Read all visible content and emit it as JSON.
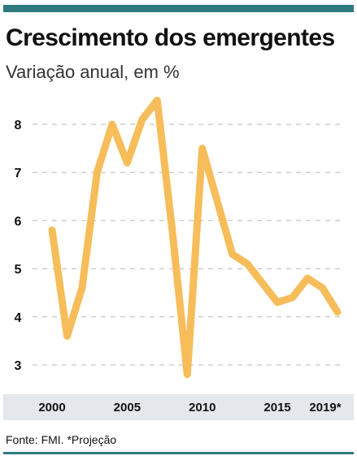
{
  "header": {
    "title": "Crescimento dos emergentes",
    "subtitle": "Variação anual, em %"
  },
  "footer": {
    "source": "Fonte: FMI. *Projeção"
  },
  "colors": {
    "accent_bar": "#2f7a80",
    "line": "#f7bd5a",
    "grid": "#cfcfcf",
    "xaxis_band": "#e4e8ec"
  },
  "chart_data": {
    "type": "line",
    "title": "Crescimento dos emergentes",
    "subtitle": "Variação anual, em %",
    "xlabel": "",
    "ylabel": "",
    "x": [
      2000,
      2001,
      2002,
      2003,
      2004,
      2005,
      2006,
      2007,
      2008,
      2009,
      2010,
      2011,
      2012,
      2013,
      2014,
      2015,
      2016,
      2017,
      2018,
      2019
    ],
    "series": [
      {
        "values": [
          5.8,
          3.6,
          4.6,
          7.0,
          8.0,
          7.2,
          8.1,
          8.5,
          5.8,
          2.8,
          7.5,
          6.4,
          5.3,
          5.1,
          4.7,
          4.3,
          4.4,
          4.8,
          4.6,
          4.1
        ]
      }
    ],
    "xticks": [
      2000,
      2005,
      2010,
      2015,
      2019
    ],
    "xtick_labels": [
      "2000",
      "2005",
      "2010",
      "2015",
      "2019*"
    ],
    "yticks": [
      3,
      4,
      5,
      6,
      7,
      8
    ],
    "ytick_labels": [
      "3",
      "4",
      "5",
      "6",
      "7",
      "8"
    ],
    "ylim": [
      2.6,
      8.6
    ],
    "grid": true,
    "legend": "none"
  }
}
